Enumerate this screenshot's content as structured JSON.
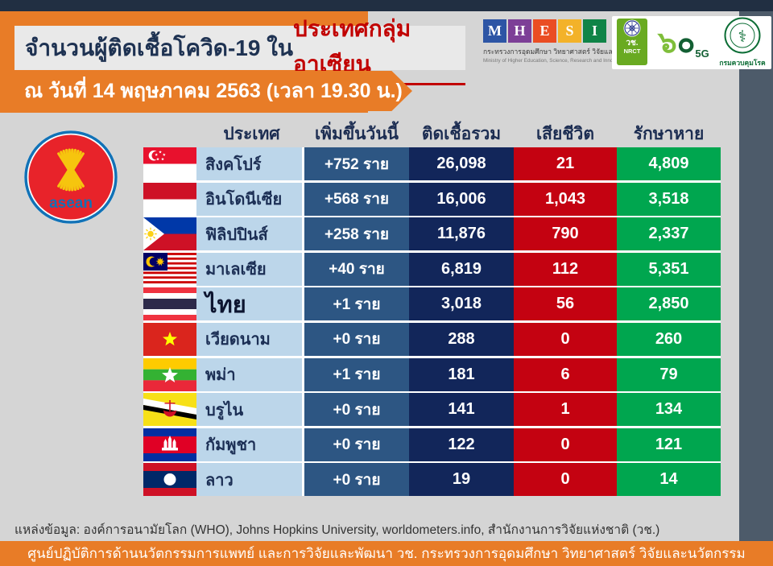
{
  "header": {
    "title_main": "จำนวนผู้ติดเชื้อโควิด-19 ใน",
    "title_highlight": "ประเทศกลุ่มอาเซียน",
    "date_line": "ณ วันที่ 14 พฤษภาคม 2563 (เวลา 19.30 น.)"
  },
  "logos": {
    "mhesi_letters": [
      "M",
      "H",
      "E",
      "S",
      "I"
    ],
    "mhesi_thai": "กระทรวงการอุดมศึกษา วิทยาศาสตร์ วิจัยและนวัตกรรม",
    "mhesi_english": "Ministry of Higher Education, Science, Research and Innovation",
    "nrct_thai": "วช.",
    "nrct_latin": "NRCT",
    "sixty_thai_six": "๖",
    "sixty_thai_zero": "๐",
    "sixty_badge": "5G",
    "ddc_name": "กรมควบคุมโรค",
    "asean_label": "asean"
  },
  "table": {
    "columns": [
      "ประเทศ",
      "เพิ่มขึ้นวันนี้",
      "ติดเชื้อรวม",
      "เสียชีวิต",
      "รักษาหาย"
    ],
    "rows": [
      {
        "flag": "sg",
        "country": "สิงคโปร์",
        "new_today": "+752 ราย",
        "total": "26,098",
        "deaths": "21",
        "recovered": "4,809"
      },
      {
        "flag": "id",
        "country": "อินโดนีเซีย",
        "new_today": "+568 ราย",
        "total": "16,006",
        "deaths": "1,043",
        "recovered": "3,518"
      },
      {
        "flag": "ph",
        "country": "ฟิลิปปินส์",
        "new_today": "+258 ราย",
        "total": "11,876",
        "deaths": "790",
        "recovered": "2,337"
      },
      {
        "flag": "my",
        "country": "มาเลเซีย",
        "new_today": "+40 ราย",
        "total": "6,819",
        "deaths": "112",
        "recovered": "5,351"
      },
      {
        "flag": "th",
        "country": "ไทย",
        "new_today": "+1 ราย",
        "total": "3,018",
        "deaths": "56",
        "recovered": "2,850",
        "emphasis": true
      },
      {
        "flag": "vn",
        "country": "เวียดนาม",
        "new_today": "+0 ราย",
        "total": "288",
        "deaths": "0",
        "recovered": "260"
      },
      {
        "flag": "mm",
        "country": "พม่า",
        "new_today": "+1 ราย",
        "total": "181",
        "deaths": "6",
        "recovered": "79"
      },
      {
        "flag": "bn",
        "country": "บรูไน",
        "new_today": "+0 ราย",
        "total": "141",
        "deaths": "1",
        "recovered": "134"
      },
      {
        "flag": "kh",
        "country": "กัมพูชา",
        "new_today": "+0 ราย",
        "total": "122",
        "deaths": "0",
        "recovered": "121"
      },
      {
        "flag": "la",
        "country": "ลาว",
        "new_today": "+0 ราย",
        "total": "19",
        "deaths": "0",
        "recovered": "14"
      }
    ]
  },
  "footer": {
    "source": "แหล่งข้อมูล: องค์การอนามัยโลก (WHO), Johns Hopkins University, worldometers.info, สำนักงานการวิจัยแห่งชาติ (วช.)",
    "credit": "ศูนย์ปฏิบัติการด้านนวัตกรรมการแพทย์ และการวิจัยและพัฒนา  วช.   กระทรวงการอุดมศึกษา วิทยาศาสตร์ วิจัยและนวัตกรรม"
  },
  "colors": {
    "accent_orange": "#e87c27",
    "top_stripe_navy": "#212f42",
    "side_slate": "#4d5b6a",
    "country_cell_blue": "#bcd6ea",
    "new_cases_blue": "#2d5683",
    "total_navy": "#12265a",
    "deaths_red": "#c40211",
    "recovered_green": "#00a64f",
    "title_red": "#c10000"
  },
  "chart_data": {
    "type": "table",
    "title": "จำนวนผู้ติดเชื้อโควิด-19 ในประเทศกลุ่มอาเซียน",
    "as_of": "ณ วันที่ 14 พฤษภาคม 2563 (เวลา 19.30 น.)",
    "columns": [
      "ประเทศ",
      "เพิ่มขึ้นวันนี้",
      "ติดเชื้อรวม",
      "เสียชีวิต",
      "รักษาหาย"
    ],
    "rows": [
      [
        "สิงคโปร์",
        752,
        26098,
        21,
        4809
      ],
      [
        "อินโดนีเซีย",
        568,
        16006,
        1043,
        3518
      ],
      [
        "ฟิลิปปินส์",
        258,
        11876,
        790,
        2337
      ],
      [
        "มาเลเซีย",
        40,
        6819,
        112,
        5351
      ],
      [
        "ไทย",
        1,
        3018,
        56,
        2850
      ],
      [
        "เวียดนาม",
        0,
        288,
        0,
        260
      ],
      [
        "พม่า",
        1,
        181,
        6,
        79
      ],
      [
        "บรูไน",
        0,
        141,
        1,
        134
      ],
      [
        "กัมพูชา",
        0,
        122,
        0,
        121
      ],
      [
        "ลาว",
        0,
        19,
        0,
        14
      ]
    ]
  }
}
